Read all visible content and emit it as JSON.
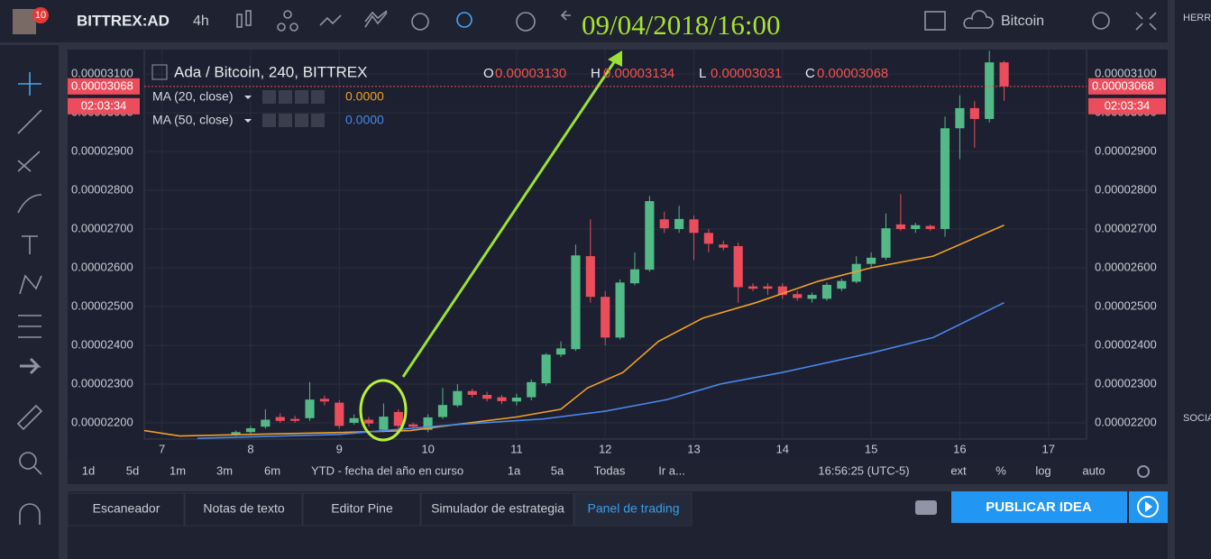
{
  "toolbar": {
    "symbol": "BITTREX:AD",
    "interval": "4h",
    "badge": "10",
    "compare": "Bitcoin",
    "annotation": "09/04/2018/16:00"
  },
  "chart_data": {
    "type": "candlestick",
    "title": "Ada / Bitcoin, 240, BITTREX",
    "ohlc_legend": {
      "o_label": "O",
      "o": "0.00003130",
      "h_label": "H",
      "h": "0.00003134",
      "l_label": "L",
      "l": "0.00003031",
      "c_label": "C",
      "c": "0.00003068"
    },
    "up_color": "#53b987",
    "down_color": "#eb4d5c",
    "grid": true,
    "x": [
      7.8333,
      8,
      8.1667,
      8.3333,
      8.5,
      8.6667,
      8.8333,
      9,
      9.1667,
      9.3333,
      9.5,
      9.6667,
      9.8333,
      10,
      10.1667,
      10.3333,
      10.5,
      10.6667,
      10.8333,
      11,
      11.1667,
      11.3333,
      11.5,
      11.6667,
      11.8333,
      12,
      12.1667,
      12.3333,
      12.5,
      12.6667,
      12.8333,
      13,
      13.1667,
      13.3333,
      13.5,
      13.6667,
      13.8333,
      14,
      14.1667,
      14.3333,
      14.5,
      14.6667,
      14.8333,
      15,
      15.1667,
      15.3333,
      15.5,
      15.6667,
      15.8333,
      16,
      16.1667,
      16.3333,
      16.5
    ],
    "open": [
      2.17e-05,
      2.176e-05,
      2.19e-05,
      2.215e-05,
      2.21e-05,
      2.212e-05,
      2.262e-05,
      2.252e-05,
      2.2e-05,
      2.208e-05,
      2.182e-05,
      2.228e-05,
      2.196e-05,
      2.182e-05,
      2.215e-05,
      2.245e-05,
      2.282e-05,
      2.272e-05,
      2.266e-05,
      2.255e-05,
      2.266e-05,
      2.302e-05,
      2.376e-05,
      2.39e-05,
      2.63e-05,
      2.525e-05,
      2.42e-05,
      2.56e-05,
      2.595e-05,
      2.725e-05,
      2.7e-05,
      2.725e-05,
      2.69e-05,
      2.66e-05,
      2.656e-05,
      2.552e-05,
      2.552e-05,
      2.552e-05,
      2.532e-05,
      2.52e-05,
      2.52e-05,
      2.546e-05,
      2.564e-05,
      2.61e-05,
      2.626e-05,
      2.712e-05,
      2.7e-05,
      2.708e-05,
      2.7e-05,
      2.96e-05,
      3.012e-05,
      2.984e-05,
      3.13e-05
    ],
    "high": [
      2.18e-05,
      2.192e-05,
      2.235e-05,
      2.225e-05,
      2.218e-05,
      2.305e-05,
      2.27e-05,
      2.258e-05,
      2.222e-05,
      2.215e-05,
      2.25e-05,
      2.235e-05,
      2.2e-05,
      2.222e-05,
      2.29e-05,
      2.3e-05,
      2.288e-05,
      2.28e-05,
      2.272e-05,
      2.275e-05,
      2.312e-05,
      2.38e-05,
      2.41e-05,
      2.66e-05,
      2.725e-05,
      2.54e-05,
      2.57e-05,
      2.64e-05,
      2.785e-05,
      2.745e-05,
      2.76e-05,
      2.735e-05,
      2.7e-05,
      2.67e-05,
      2.665e-05,
      2.56e-05,
      2.56e-05,
      2.56e-05,
      2.54e-05,
      2.536e-05,
      2.562e-05,
      2.572e-05,
      2.63e-05,
      2.64e-05,
      2.74e-05,
      2.79e-05,
      2.716e-05,
      2.712e-05,
      2.99e-05,
      3.045e-05,
      3.03e-05,
      3.16e-05,
      3.134e-05
    ],
    "low": [
      2.166e-05,
      2.17e-05,
      2.185e-05,
      2.2e-05,
      2.2e-05,
      2.205e-05,
      2.245e-05,
      2.185e-05,
      2.195e-05,
      2.19e-05,
      2.176e-05,
      2.186e-05,
      2.185e-05,
      2.176e-05,
      2.21e-05,
      2.24e-05,
      2.265e-05,
      2.255e-05,
      2.248e-05,
      2.245e-05,
      2.258e-05,
      2.295e-05,
      2.37e-05,
      2.385e-05,
      2.51e-05,
      2.4e-05,
      2.415e-05,
      2.555e-05,
      2.59e-05,
      2.69e-05,
      2.69e-05,
      2.62e-05,
      2.64e-05,
      2.645e-05,
      2.51e-05,
      2.54e-05,
      2.53e-05,
      2.52e-05,
      2.515e-05,
      2.51e-05,
      2.515e-05,
      2.54e-05,
      2.56e-05,
      2.6e-05,
      2.62e-05,
      2.695e-05,
      2.69e-05,
      2.695e-05,
      2.68e-05,
      2.88e-05,
      2.91e-05,
      2.975e-05,
      3.031e-05
    ],
    "close": [
      2.176e-05,
      2.186e-05,
      2.208e-05,
      2.205e-05,
      2.205e-05,
      2.26e-05,
      2.255e-05,
      2.192e-05,
      2.212e-05,
      2.198e-05,
      2.216e-05,
      2.192e-05,
      2.19e-05,
      2.214e-05,
      2.246e-05,
      2.282e-05,
      2.272e-05,
      2.262e-05,
      2.256e-05,
      2.265e-05,
      2.305e-05,
      2.376e-05,
      2.392e-05,
      2.632e-05,
      2.525e-05,
      2.42e-05,
      2.562e-05,
      2.596e-05,
      2.772e-05,
      2.702e-05,
      2.726e-05,
      2.69e-05,
      2.662e-05,
      2.652e-05,
      2.55e-05,
      2.546e-05,
      2.546e-05,
      2.53e-05,
      2.522e-05,
      2.53e-05,
      2.556e-05,
      2.566e-05,
      2.61e-05,
      2.626e-05,
      2.702e-05,
      2.7e-05,
      2.71e-05,
      2.7e-05,
      2.96e-05,
      3.012e-05,
      2.984e-05,
      3.13e-05,
      3.068e-05
    ],
    "series": [
      {
        "name": "MA (20, close)",
        "legend_value": "0.0000",
        "color": "#f0a028",
        "x": [
          6.8,
          7.2,
          8,
          9,
          9.8,
          10.3,
          11,
          11.5,
          11.8,
          12.2,
          12.6,
          13.1,
          13.7,
          14.4,
          15,
          15.7,
          16.5
        ],
        "values": [
          2.18e-05,
          2.166e-05,
          2.17e-05,
          2.175e-05,
          2.18e-05,
          2.195e-05,
          2.215e-05,
          2.235e-05,
          2.29e-05,
          2.33e-05,
          2.41e-05,
          2.47e-05,
          2.51e-05,
          2.565e-05,
          2.6e-05,
          2.63e-05,
          2.71e-05
        ]
      },
      {
        "name": "MA (50, close)",
        "legend_value": "0.0000",
        "color": "#4a86e8",
        "x": [
          7.4,
          9,
          9.5,
          10.3,
          11.3,
          12,
          12.7,
          13.3,
          14,
          15,
          15.7,
          16.5
        ],
        "values": [
          2.16e-05,
          2.17e-05,
          2.18e-05,
          2.195e-05,
          2.21e-05,
          2.23e-05,
          2.26e-05,
          2.3e-05,
          2.33e-05,
          2.38e-05,
          2.42e-05,
          2.51e-05
        ]
      }
    ],
    "price_line": {
      "value": 3.068e-05,
      "label": "0.00003068",
      "countdown": "02:03:34"
    },
    "xlim": [
      6.8,
      17.43
    ],
    "xticks": [
      7,
      8,
      9,
      10,
      11,
      12,
      13,
      14,
      15,
      16,
      17
    ],
    "ylim": [
      2.158e-05,
      3.163e-05
    ],
    "yticks": [
      {
        "value": 2.2e-05,
        "label": "0.00002200"
      },
      {
        "value": 2.3e-05,
        "label": "0.00002300"
      },
      {
        "value": 2.4e-05,
        "label": "0.00002400"
      },
      {
        "value": 2.5e-05,
        "label": "0.00002500"
      },
      {
        "value": 2.6e-05,
        "label": "0.00002600"
      },
      {
        "value": 2.7e-05,
        "label": "0.00002700"
      },
      {
        "value": 2.8e-05,
        "label": "0.00002800"
      },
      {
        "value": 2.9e-05,
        "label": "0.00002900"
      },
      {
        "value": 3e-05,
        "label": "0.00003000"
      },
      {
        "value": 3.1e-05,
        "label": "0.00003100"
      }
    ]
  },
  "bottom_bar": {
    "ranges": [
      "1d",
      "5d",
      "1m",
      "3m",
      "6m",
      "YTD - fecha del año en curso",
      "1a",
      "5a",
      "Todas",
      "Ir a..."
    ],
    "clock": "16:56:25 (UTC-5)",
    "options": [
      "ext",
      "%",
      "log",
      "auto"
    ]
  },
  "tabs": [
    "Escaneador",
    "Notas de texto",
    "Editor Pine",
    "Simulador de estrategia",
    "Panel de trading"
  ],
  "publish": "PUBLICAR IDEA",
  "sidebar": {
    "tools": "HERRA",
    "social": "SOCIA"
  }
}
